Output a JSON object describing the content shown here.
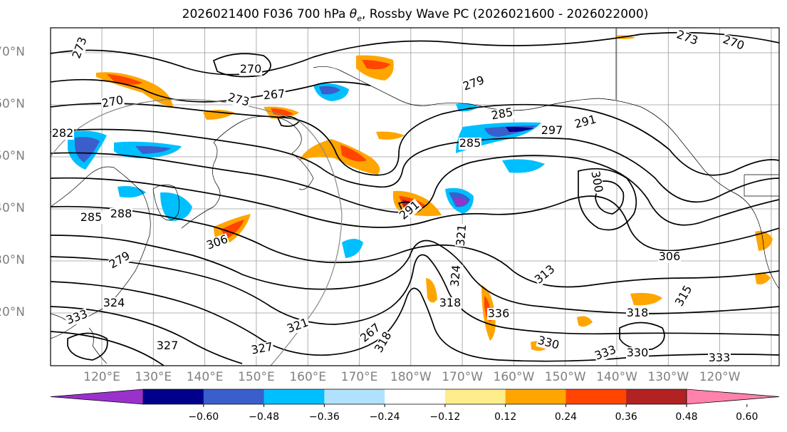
{
  "title": {
    "prefix": "2026021400 F036 700 hPa ",
    "theta_symbol": "θ",
    "theta_sub": "e",
    "suffix": ", Rossby Wave PC (2026021600 - 2026022000)"
  },
  "lat_labels": [
    "70°N",
    "60°N",
    "50°N",
    "40°N",
    "30°N",
    "20°N"
  ],
  "lon_labels": [
    "120°E",
    "130°E",
    "140°E",
    "150°E",
    "160°E",
    "170°E",
    "180°W",
    "170°W",
    "160°W",
    "150°W",
    "140°W",
    "130°W",
    "120°W"
  ],
  "contour_labels": [
    "270",
    "270",
    "273",
    "267",
    "273",
    "273",
    "270",
    "279",
    "285",
    "291",
    "297",
    "300",
    "285",
    "306",
    "321",
    "318",
    "324",
    "313",
    "321",
    "324",
    "333",
    "327",
    "330",
    "318",
    "333",
    "330",
    "333",
    "318",
    "315",
    "282",
    "267",
    "279",
    "288",
    "291",
    "285",
    "306",
    "327",
    "336"
  ],
  "colorbar": {
    "ticks": [
      "−0.60",
      "−0.48",
      "−0.36",
      "−0.24",
      "−0.12",
      "0.12",
      "0.24",
      "0.36",
      "0.48",
      "0.60"
    ],
    "colors": [
      "#9932cc",
      "#00008b",
      "#3a5fcd",
      "#00bfff",
      "#b0e2ff",
      "#ffffff",
      "#ffec8b",
      "#ffa500",
      "#ff4500",
      "#b22222",
      "#ff82ab"
    ]
  }
}
